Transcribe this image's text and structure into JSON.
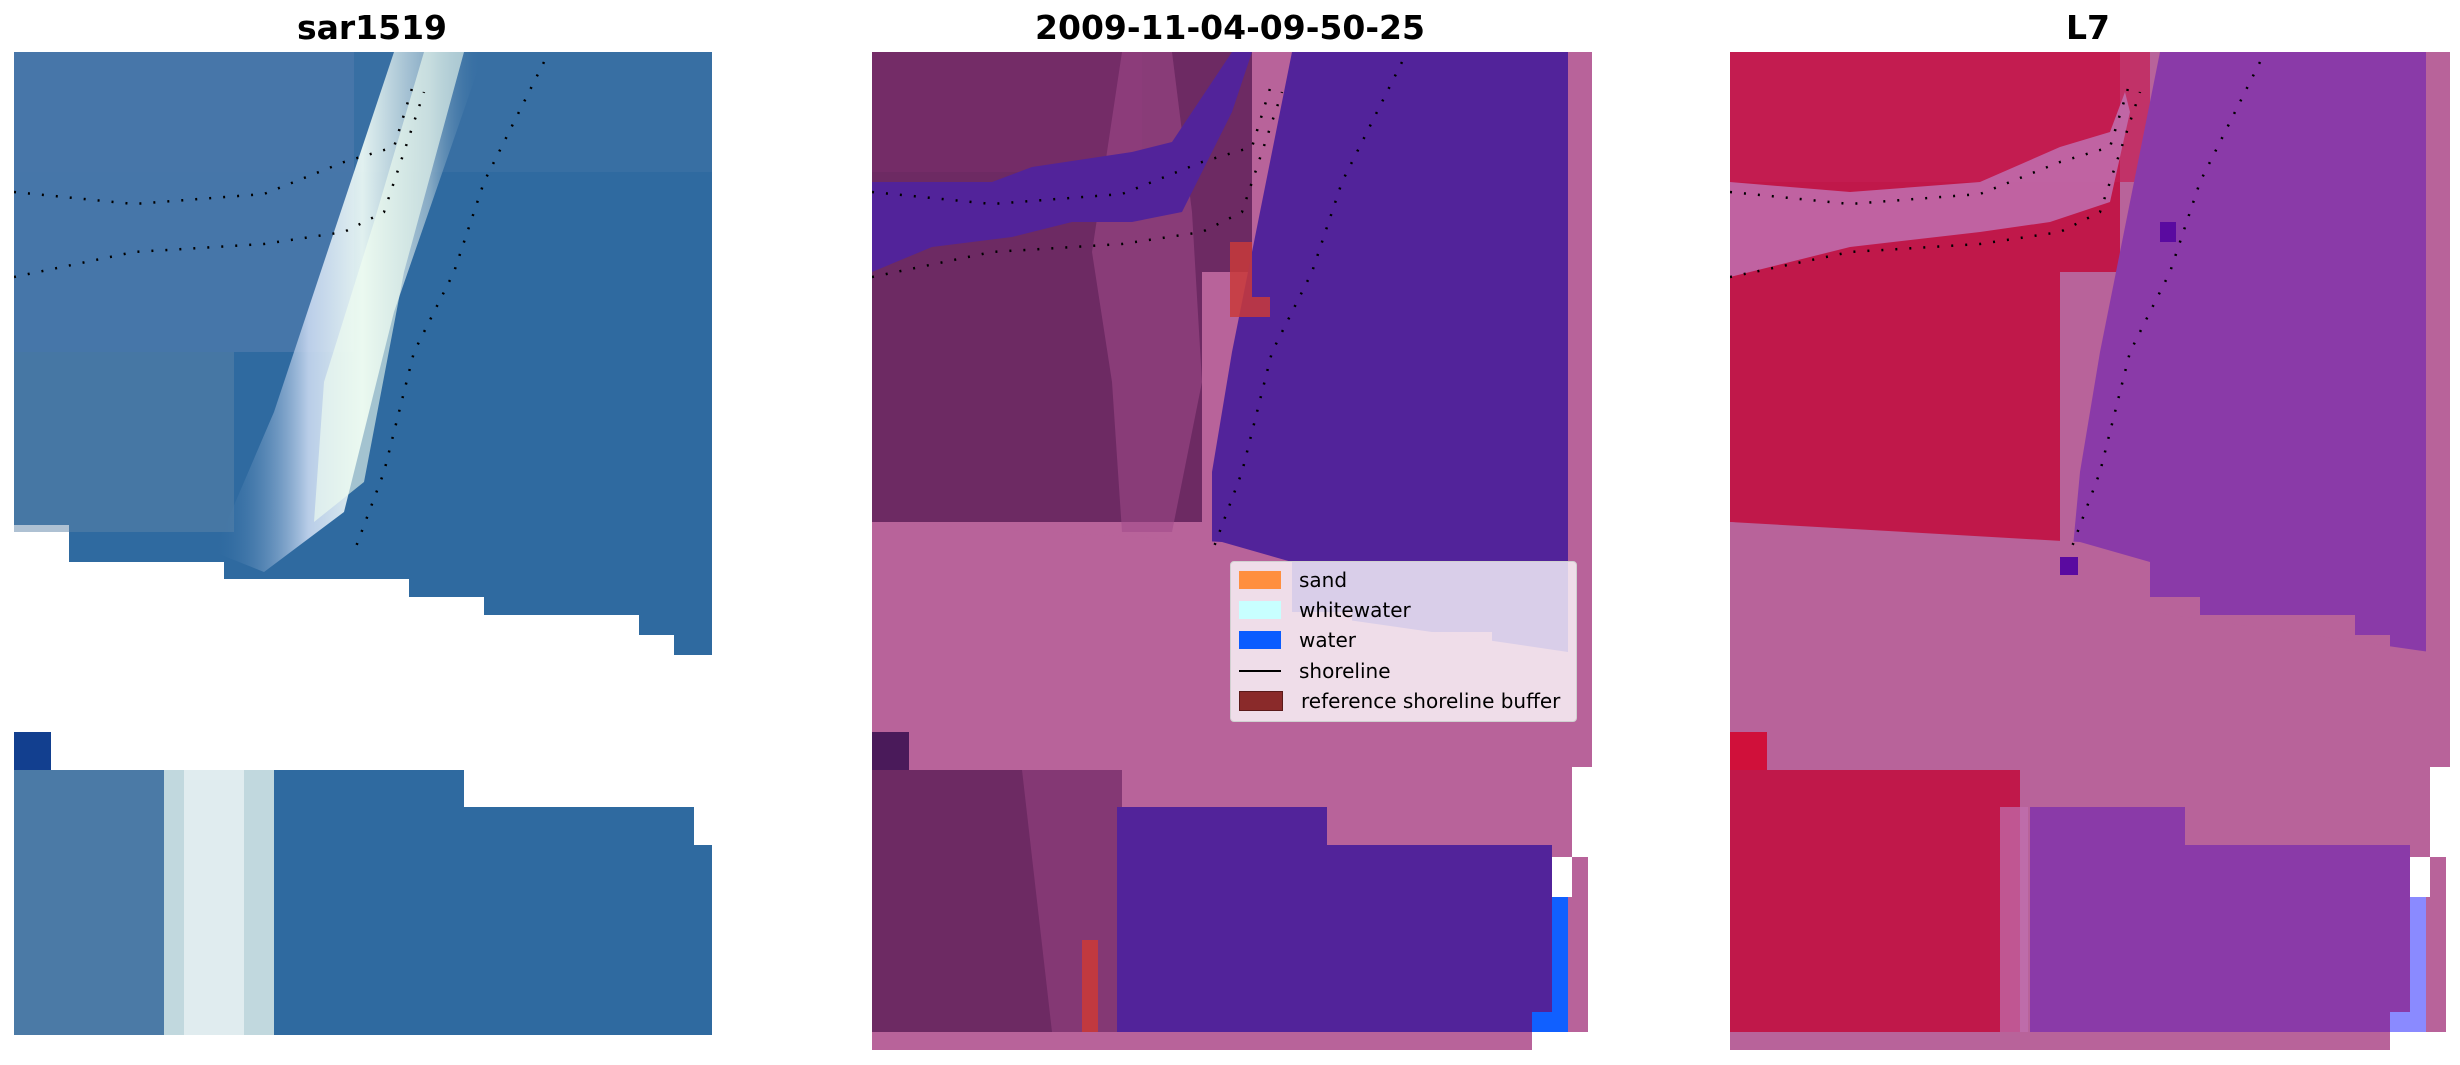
{
  "panels": [
    {
      "title": "sar1519"
    },
    {
      "title": "2009-11-04-09-50-25"
    },
    {
      "title": "L7"
    }
  ],
  "legend": {
    "items": [
      {
        "label": "sand",
        "color": "#ff8f3f",
        "kind": "patch"
      },
      {
        "label": "whitewater",
        "color": "#c8ffff",
        "kind": "patch"
      },
      {
        "label": "water",
        "color": "#0a5cff",
        "kind": "patch"
      },
      {
        "label": "shoreline",
        "color": "#000000",
        "kind": "line"
      },
      {
        "label": "reference shoreline buffer",
        "color": "#8a2a2a",
        "kind": "patch"
      }
    ]
  },
  "colors": {
    "rgb_sea": "#2f6aa0",
    "rgb_sea_dark": "#25588f",
    "rgb_surf": "#e8f0f0",
    "rgb_beach": "#6a8aa8",
    "class_land": "#6d2a63",
    "class_water": "#52239a",
    "class_masked": "#b8639a",
    "class_buffer": "#c83a3a",
    "class_water_bright": "#1060ff",
    "mndwi_land": "#c0184a",
    "mndwi_water": "#8a3aa8",
    "mndwi_masked": "#b8639a"
  }
}
